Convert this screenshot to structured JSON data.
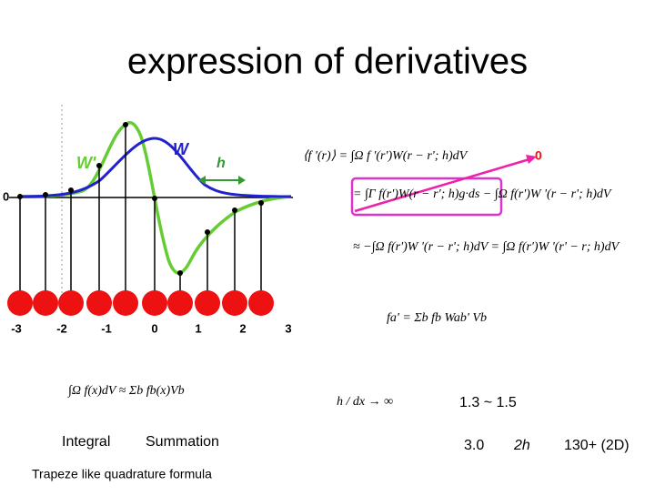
{
  "title": "expression of derivatives",
  "plot": {
    "labels": {
      "w_prime": "W'",
      "w": "W",
      "h": "h",
      "y_zero": "0"
    },
    "x_ticks": [
      "-3",
      "-2",
      "-1",
      "0",
      "1",
      "2",
      "3"
    ]
  },
  "equations": {
    "eq1": "⟨f '(r)⟩ = ∫Ω f '(r')W(r − r'; h)dV",
    "zero": "0",
    "eq2": "= ∫Γ f(r')W(r − r'; h)g·ds − ∫Ω f(r')W '(r − r'; h)dV",
    "eq3": "≈ −∫Ω f(r')W '(r − r'; h)dV = ∫Ω f(r')W '(r' − r; h)dV",
    "sum": "fa' = Σb fb Wab' Vb",
    "integral": "∫Ω f(x)dV ≈ Σb fb(x)Vb",
    "ratio": "h / dx → ∞"
  },
  "notes": {
    "ratio_range": "1.3 ~ 1.5",
    "integral": "Integral",
    "summation": "Summation",
    "trapeze": "Trapeze like quadrature formula",
    "value": "3.0",
    "two_h": "2h",
    "count": "130+ (2D)"
  }
}
